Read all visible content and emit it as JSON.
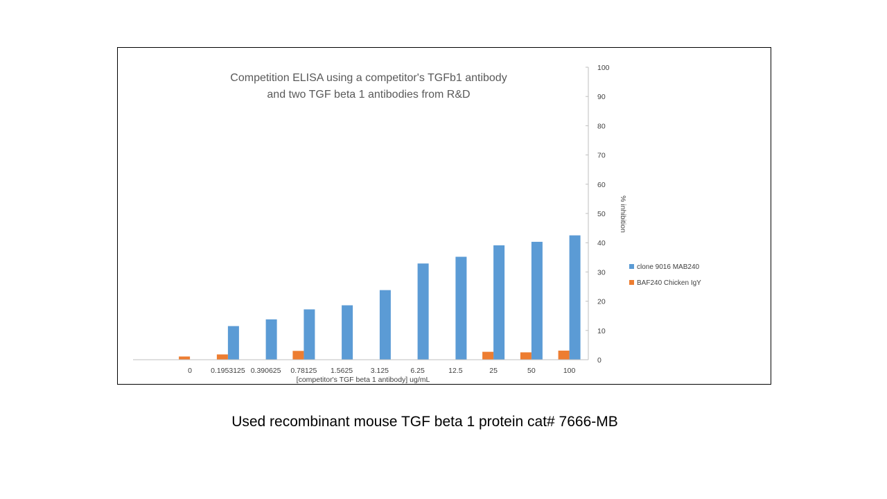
{
  "chart_data": {
    "type": "bar",
    "title": [
      "Competition ELISA using a competitor's TGFb1 antibody",
      "and two TGF beta 1 antibodies from R&D"
    ],
    "xlabel": "[competitor's TGF beta 1 antibody] ug/mL",
    "ylabel": "% inhibition",
    "ylim": [
      0,
      100
    ],
    "yticks": [
      "0",
      "10",
      "20",
      "30",
      "40",
      "50",
      "60",
      "70",
      "80",
      "90",
      "100"
    ],
    "y_axis_position": "right",
    "grid": false,
    "legend_position": "right",
    "categories": [
      "",
      "0",
      "0.1953125",
      "0.390625",
      "0.78125",
      "1.5625",
      "3.125",
      "6.25",
      "12.5",
      "25",
      "50",
      "100"
    ],
    "series": [
      {
        "name": "clone 9016 MAB240",
        "color": "#5b9bd5",
        "values": [
          0,
          0,
          11.5,
          13.8,
          17.2,
          18.6,
          23.8,
          32.9,
          35.2,
          39.1,
          40.3,
          42.5
        ]
      },
      {
        "name": "BAF240 Chicken IgY",
        "color": "#ed7d31",
        "values": [
          0,
          1.1,
          1.8,
          0,
          3.0,
          0,
          0,
          0,
          0,
          2.7,
          2.5,
          3.1
        ]
      }
    ]
  },
  "caption": "Used recombinant mouse TGF beta 1 protein cat# 7666-MB"
}
